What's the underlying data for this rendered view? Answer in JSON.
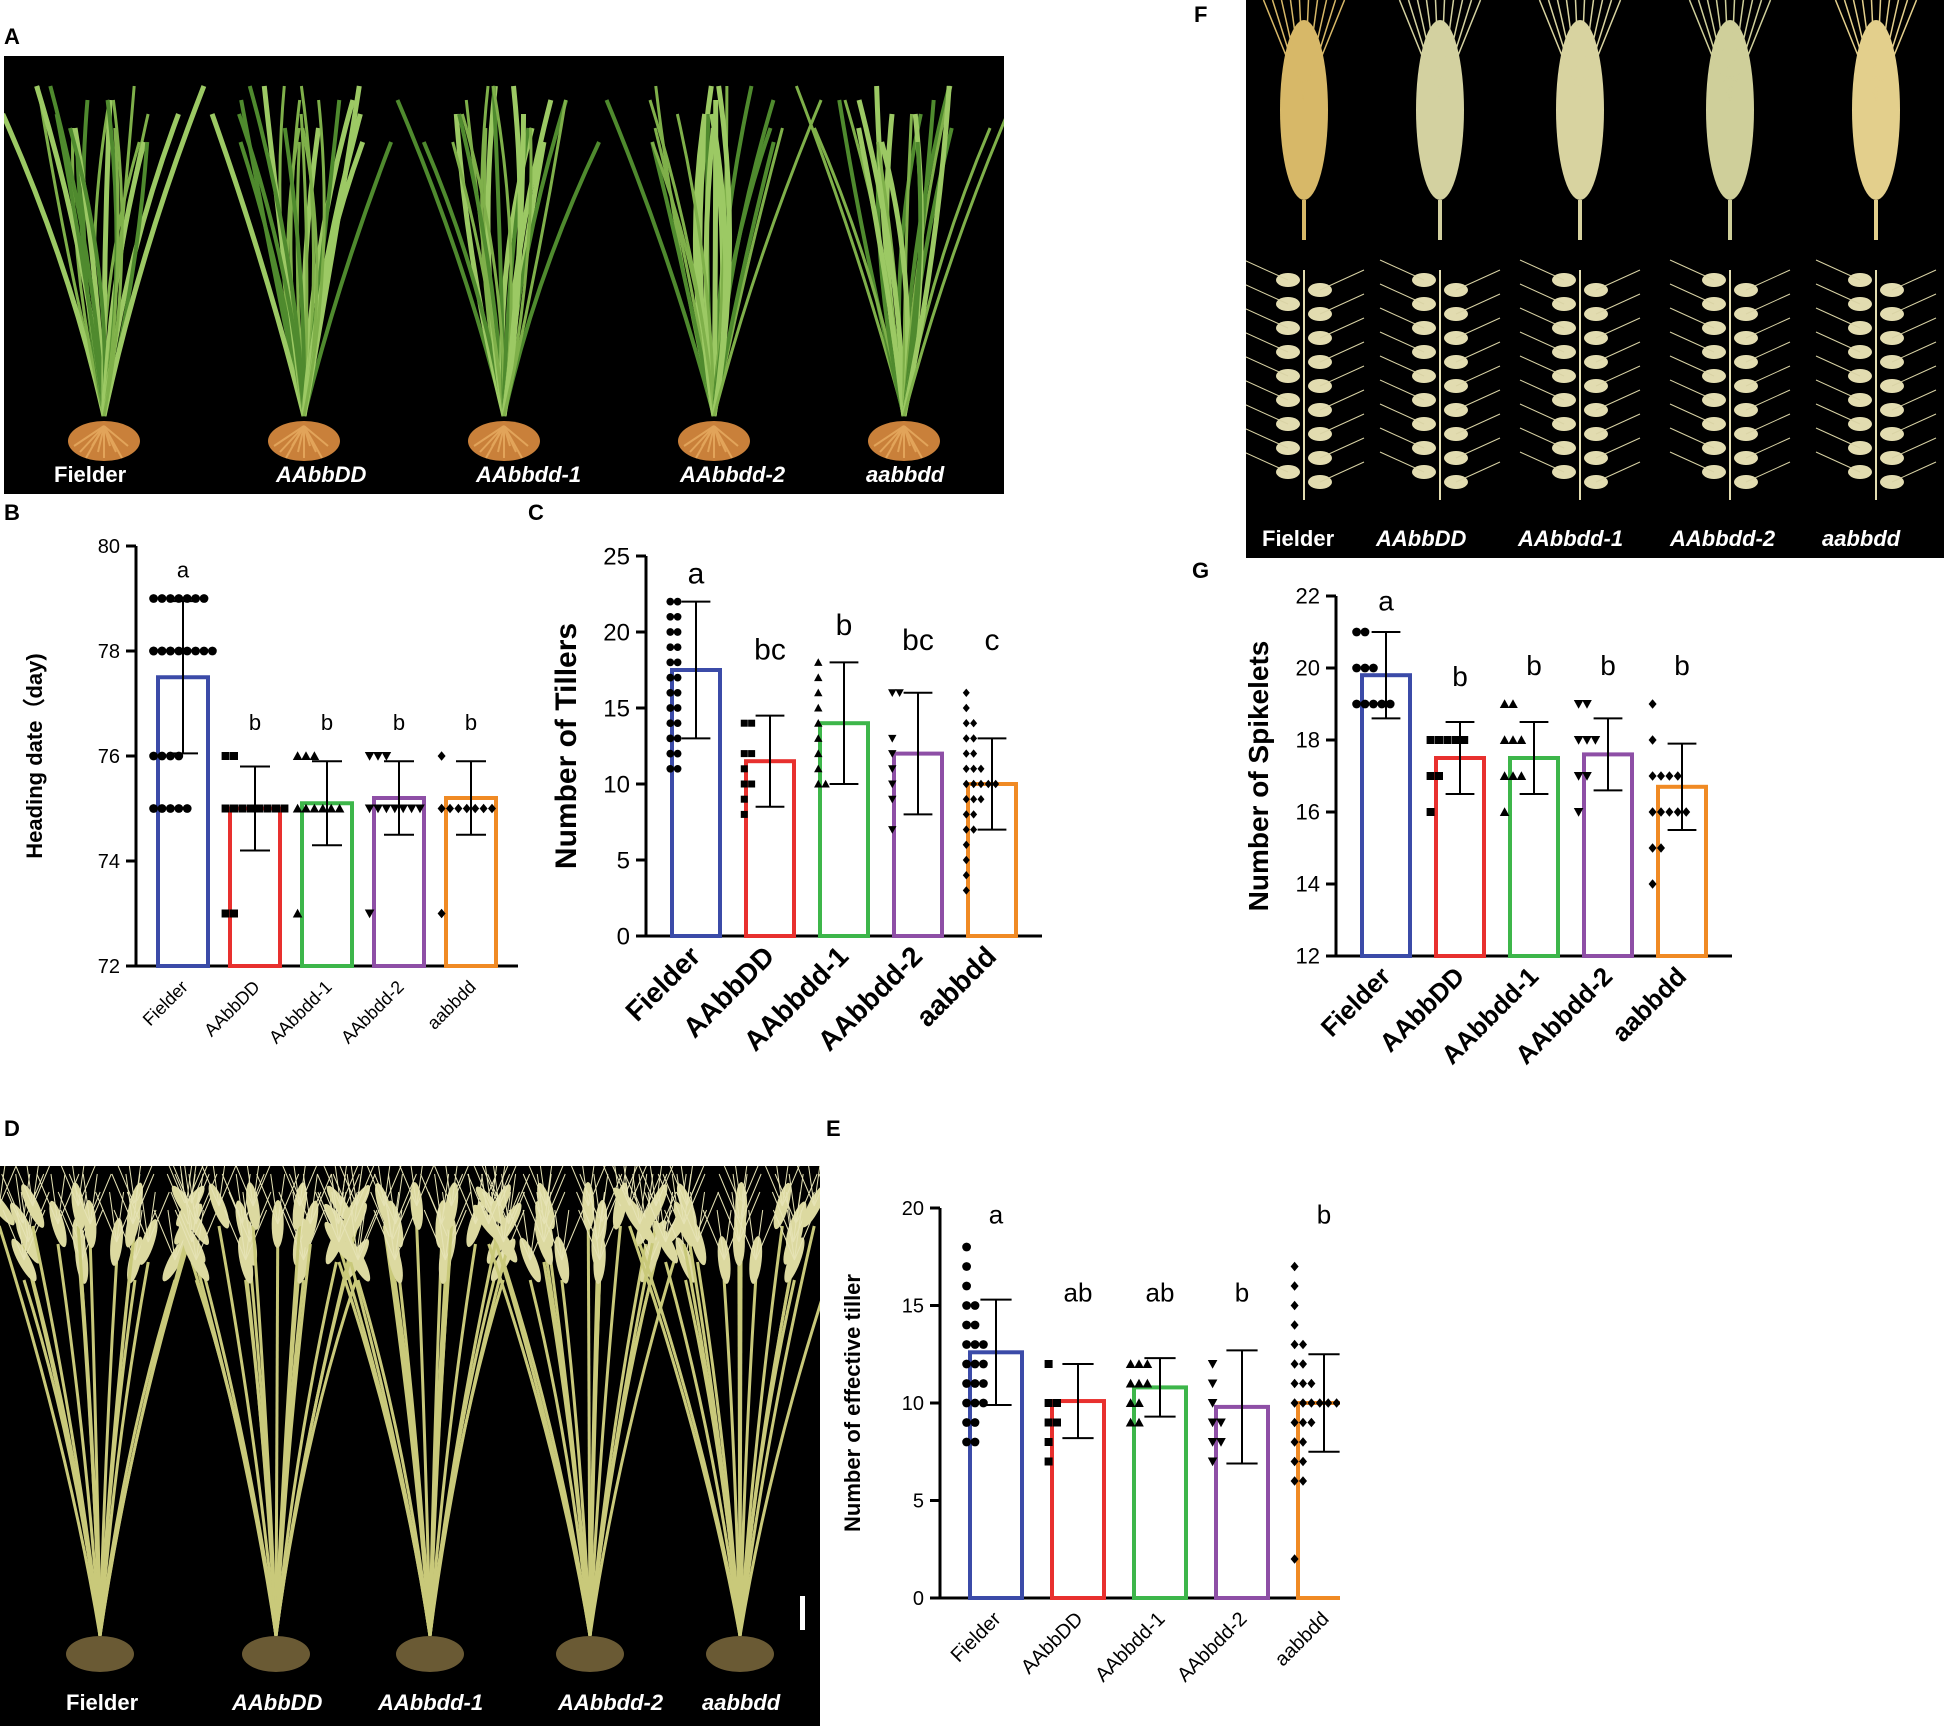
{
  "panels": {
    "A": "A",
    "B": "B",
    "C": "C",
    "D": "D",
    "E": "E",
    "F": "F",
    "G": "G"
  },
  "photo_labels": {
    "fielder": "Fielder",
    "aabbDD": "AAbbDD",
    "aabbdd1": "AAbbdd-1",
    "aabbdd2": "AAbbdd-2",
    "aabbdd": "aabbdd"
  },
  "colors": {
    "fielder": "#3b4ba8",
    "aabbDD": "#e8302e",
    "aabbdd1": "#3db64a",
    "aabbdd2": "#8e4fa6",
    "aabbdd": "#f08a24"
  },
  "chart_data": [
    {
      "id": "B",
      "type": "bar",
      "categories": [
        "Fielder",
        "AAbbDD",
        "AAbbdd-1",
        "AAbbdd-2",
        "aabbdd"
      ],
      "values": [
        77.5,
        75.0,
        75.1,
        75.2,
        75.2
      ],
      "errors": [
        1.45,
        0.8,
        0.8,
        0.7,
        0.7
      ],
      "significance": [
        "a",
        "b",
        "b",
        "b",
        "b"
      ],
      "ylabel": "Heading date（day)",
      "ylim": [
        72,
        80
      ],
      "yticks": [
        72,
        74,
        76,
        78,
        80
      ],
      "points": [
        [
          79,
          79,
          79,
          79,
          79,
          79,
          79,
          78,
          78,
          78,
          78,
          78,
          78,
          78,
          78,
          78,
          78,
          78,
          76,
          76,
          76,
          76,
          75,
          75,
          75,
          75,
          75
        ],
        [
          76,
          76,
          75,
          75,
          75,
          75,
          75,
          75,
          75,
          75,
          73,
          73
        ],
        [
          76,
          76,
          76,
          75,
          75,
          75,
          75,
          75,
          75,
          73
        ],
        [
          76,
          76,
          76,
          75,
          75,
          75,
          75,
          75,
          75,
          75,
          73
        ],
        [
          76,
          75,
          75,
          75,
          75,
          75,
          75,
          75,
          73
        ]
      ]
    },
    {
      "id": "C",
      "type": "bar",
      "categories": [
        "Fielder",
        "AAbbDD",
        "AAbbdd-1",
        "AAbbdd-2",
        "aabbdd"
      ],
      "values": [
        17.5,
        11.5,
        14.0,
        12.0,
        10.0
      ],
      "errors": [
        4.5,
        3.0,
        4.0,
        4.0,
        3.0
      ],
      "significance": [
        "a",
        "bc",
        "b",
        "bc",
        "c"
      ],
      "ylabel": "Number of Tillers",
      "ylim": [
        0,
        25
      ],
      "yticks": [
        0,
        5,
        10,
        15,
        20,
        25
      ],
      "points": [
        [
          22,
          22,
          21,
          21,
          20,
          20,
          19,
          19,
          18,
          18,
          17,
          17,
          16,
          16,
          15,
          15,
          14,
          14,
          13,
          13,
          12,
          12,
          11,
          11
        ],
        [
          14,
          14,
          12,
          12,
          11,
          10,
          10,
          9,
          8
        ],
        [
          18,
          17,
          16,
          15,
          14,
          13,
          12,
          11,
          10,
          10
        ],
        [
          16,
          16,
          13,
          12,
          11,
          10,
          9,
          7
        ],
        [
          16,
          15,
          14,
          14,
          13,
          13,
          12,
          12,
          11,
          11,
          11,
          10,
          10,
          10,
          10,
          10,
          9,
          9,
          9,
          8,
          8,
          7,
          7,
          6,
          5,
          4,
          3
        ]
      ]
    },
    {
      "id": "E",
      "type": "bar",
      "categories": [
        "Fielder",
        "AAbbDD",
        "AAbbdd-1",
        "AAbbdd-2",
        "aabbdd"
      ],
      "values": [
        12.6,
        10.1,
        10.8,
        9.8,
        10.0
      ],
      "errors": [
        2.7,
        1.9,
        1.5,
        2.9,
        2.5
      ],
      "significance": [
        "a",
        "ab",
        "ab",
        "b",
        "b"
      ],
      "ylabel": "Number of effective tiller",
      "ylim": [
        0,
        20
      ],
      "yticks": [
        0,
        5,
        10,
        15,
        20
      ],
      "points": [
        [
          18,
          17,
          16,
          15,
          15,
          14,
          14,
          13,
          13,
          13,
          12,
          12,
          12,
          11,
          11,
          11,
          10,
          10,
          10,
          9,
          9,
          8,
          8
        ],
        [
          12,
          10,
          10,
          9,
          9,
          8,
          7
        ],
        [
          12,
          12,
          12,
          11,
          11,
          11,
          10,
          10,
          9,
          9
        ],
        [
          12,
          11,
          10,
          9,
          9,
          8,
          8,
          7
        ],
        [
          17,
          16,
          15,
          14,
          13,
          13,
          12,
          12,
          11,
          11,
          11,
          10,
          10,
          10,
          10,
          10,
          10,
          9,
          9,
          9,
          8,
          8,
          7,
          7,
          6,
          6,
          2
        ]
      ]
    },
    {
      "id": "G",
      "type": "bar",
      "categories": [
        "Fielder",
        "AAbbDD",
        "AAbbdd-1",
        "AAbbdd-2",
        "aabbdd"
      ],
      "values": [
        19.8,
        17.5,
        17.5,
        17.6,
        16.7
      ],
      "errors": [
        1.2,
        1.0,
        1.0,
        1.0,
        1.2
      ],
      "significance": [
        "a",
        "b",
        "b",
        "b",
        "b"
      ],
      "ylabel": "Number of Spikelets",
      "ylim": [
        12,
        22
      ],
      "yticks": [
        12,
        14,
        16,
        18,
        20,
        22
      ],
      "points": [
        [
          21,
          21,
          20,
          20,
          20,
          19,
          19,
          19,
          19,
          19
        ],
        [
          18,
          18,
          18,
          18,
          18,
          17,
          17,
          16
        ],
        [
          19,
          19,
          18,
          18,
          18,
          17,
          17,
          17,
          16
        ],
        [
          19,
          19,
          18,
          18,
          18,
          17,
          17,
          16
        ],
        [
          19,
          18,
          17,
          17,
          17,
          17,
          16,
          16,
          16,
          16,
          16,
          15,
          15,
          14
        ]
      ]
    }
  ]
}
